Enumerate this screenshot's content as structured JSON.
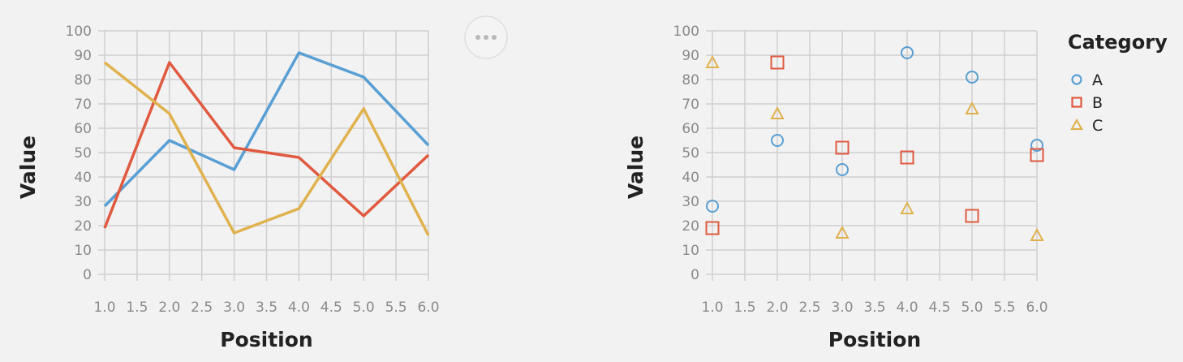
{
  "colors": {
    "A": "#5a9fd4",
    "B": "#e05a40",
    "C": "#e0b24f"
  },
  "menu": {
    "icon": "more-horizontal-icon"
  },
  "chart_data": [
    {
      "type": "line",
      "xlabel": "Position",
      "ylabel": "Value",
      "xlim": [
        1.0,
        6.0
      ],
      "ylim": [
        0,
        100
      ],
      "xticks": [
        "1.0",
        "1.5",
        "2.0",
        "2.5",
        "3.0",
        "3.5",
        "4.0",
        "4.5",
        "5.0",
        "5.5",
        "6.0"
      ],
      "yticks": [
        "0",
        "10",
        "20",
        "30",
        "40",
        "50",
        "60",
        "70",
        "80",
        "90",
        "100"
      ],
      "grid": true,
      "x": [
        1,
        2,
        3,
        4,
        5,
        6
      ],
      "series": [
        {
          "key": "A",
          "values": [
            28,
            55,
            43,
            91,
            81,
            53
          ]
        },
        {
          "key": "B",
          "values": [
            19,
            87,
            52,
            48,
            24,
            49
          ]
        },
        {
          "key": "C",
          "values": [
            87,
            66,
            17,
            27,
            68,
            16
          ]
        }
      ]
    },
    {
      "type": "scatter",
      "xlabel": "Position",
      "ylabel": "Value",
      "xlim": [
        1.0,
        6.0
      ],
      "ylim": [
        0,
        100
      ],
      "xticks": [
        "1.0",
        "1.5",
        "2.0",
        "2.5",
        "3.0",
        "3.5",
        "4.0",
        "4.5",
        "5.0",
        "5.5",
        "6.0"
      ],
      "yticks": [
        "0",
        "10",
        "20",
        "30",
        "40",
        "50",
        "60",
        "70",
        "80",
        "90",
        "100"
      ],
      "grid": true,
      "legend": {
        "title": "Category",
        "placement": "right",
        "items": [
          {
            "label": "A",
            "shape": "circle"
          },
          {
            "label": "B",
            "shape": "square"
          },
          {
            "label": "C",
            "shape": "triangle"
          }
        ]
      },
      "x": [
        1,
        2,
        3,
        4,
        5,
        6
      ],
      "series": [
        {
          "name": "A",
          "shape": "circle",
          "values": [
            28,
            55,
            43,
            91,
            81,
            53
          ]
        },
        {
          "name": "B",
          "shape": "square",
          "values": [
            19,
            87,
            52,
            48,
            24,
            49
          ]
        },
        {
          "name": "C",
          "shape": "triangle",
          "values": [
            87,
            66,
            17,
            27,
            68,
            16
          ]
        }
      ]
    }
  ]
}
